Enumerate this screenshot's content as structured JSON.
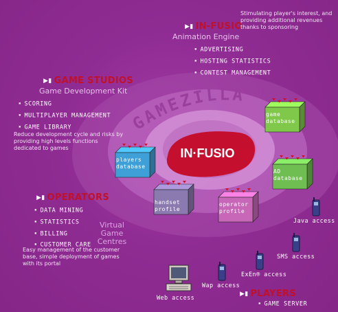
{
  "center": {
    "logo": "IN·FUSIO",
    "ring": "GAMEZILLA"
  },
  "infusio": {
    "title": "IN-FUSIO",
    "subtitle": "Animation Engine",
    "items": [
      "ADVERTISING",
      "HOSTING STATISTICS",
      "CONTEST MANAGEMENT"
    ],
    "description": "Stimulating player's interest, and providing additional revenues thanks to sponsoring"
  },
  "game_studios": {
    "title": "GAME STUDIOS",
    "subtitle": "Game Development Kit",
    "items": [
      "SCORING",
      "MULTIPLAYER MANAGEMENT",
      "GAME LIBRARY"
    ],
    "description": "Reduce development cycle and risks by providing high levels functions dedicated to games"
  },
  "operators": {
    "title": "OPERATORS",
    "items": [
      "DATA MINING",
      "STATISTICS",
      "BILLING",
      "CUSTOMER CARE"
    ],
    "description": "Easy management of the customer base, simple deployment of games with its portal"
  },
  "virtual_centres": [
    "Virtual",
    "Game",
    "Centres"
  ],
  "players": {
    "title": "PLAYERS",
    "items": [
      "GAME SERVER"
    ]
  },
  "databases": [
    {
      "line1": "game",
      "line2": "database",
      "color": "#7fc84a"
    },
    {
      "line1": "players",
      "line2": "database",
      "color": "#3fa0d8"
    },
    {
      "line1": "AD",
      "line2": "database",
      "color": "#6fbe52"
    },
    {
      "line1": "handset",
      "line2": "profile",
      "color": "#8a7ab0"
    },
    {
      "line1": "operator",
      "line2": "profile",
      "color": "#c867b8"
    }
  ],
  "access": {
    "java": "Java access",
    "sms": "SMS access",
    "exen": "ExEn® access",
    "wap": "Wap access",
    "web": "Web access"
  },
  "colors": {
    "background": "#8a2a8e",
    "accent_red": "#c0102a",
    "ellipse_outer": "#b45bb8",
    "ellipse_inner": "#d18cd4"
  }
}
